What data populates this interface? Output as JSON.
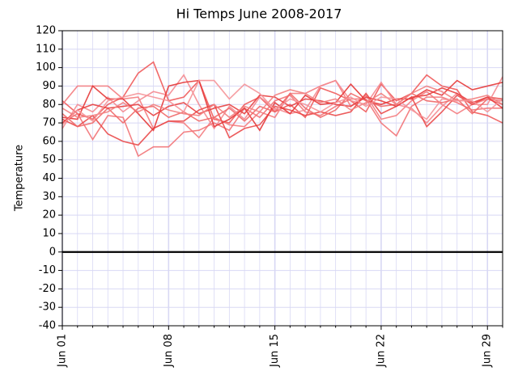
{
  "chart_data": {
    "type": "line",
    "title": "Hi Temps June 2008-2017",
    "y_label": "Temperature",
    "categories": [
      "Jun 01",
      null,
      null,
      null,
      null,
      null,
      null,
      "Jun 08",
      null,
      null,
      null,
      null,
      null,
      null,
      "Jun 15",
      null,
      null,
      null,
      null,
      null,
      null,
      "Jun 22",
      null,
      null,
      null,
      null,
      null,
      null,
      "Jun 29",
      null
    ],
    "ylim": [
      -40,
      120
    ],
    "yticks": [
      -40,
      -30,
      -20,
      -10,
      0,
      10,
      20,
      30,
      40,
      50,
      60,
      70,
      80,
      90,
      100,
      110,
      120
    ],
    "grid": true,
    "grid_color": "#d8d8f4",
    "hline": 0,
    "series": [
      {
        "color": "#f05a5a",
        "values": [
          82,
          75,
          72,
          80,
          84,
          97,
          103,
          82,
          84,
          93,
          72,
          70,
          80,
          84,
          76,
          80,
          73,
          89,
          86,
          82,
          76,
          91,
          82,
          86,
          96,
          90,
          88,
          76,
          74,
          70
        ]
      },
      {
        "color": "#f47c80",
        "values": [
          80,
          90,
          90,
          90,
          83,
          84,
          67,
          71,
          70,
          62,
          73,
          69,
          68,
          76,
          73,
          86,
          86,
          90,
          93,
          79,
          85,
          72,
          74,
          82,
          87,
          80,
          75,
          80,
          83,
          82
        ]
      },
      {
        "color": "#f27377",
        "values": [
          70,
          75,
          61,
          74,
          73,
          52,
          57,
          57,
          65,
          66,
          70,
          66,
          78,
          73,
          82,
          85,
          76,
          74,
          79,
          83,
          83,
          70,
          63,
          79,
          84,
          84,
          81,
          77,
          78,
          78
        ]
      },
      {
        "color": "#f48a90",
        "values": [
          67,
          80,
          76,
          84,
          76,
          82,
          87,
          85,
          96,
          80,
          67,
          79,
          72,
          84,
          78,
          75,
          77,
          90,
          93,
          82,
          80,
          92,
          80,
          78,
          70,
          79,
          86,
          80,
          80,
          95
        ]
      },
      {
        "color": "#ea4a4a",
        "values": [
          72,
          68,
          74,
          64,
          60,
          58,
          67,
          71,
          71,
          77,
          80,
          62,
          67,
          69,
          79,
          77,
          74,
          76,
          74,
          76,
          86,
          75,
          79,
          84,
          68,
          76,
          85,
          80,
          84,
          83
        ]
      },
      {
        "color": "#e63838",
        "values": [
          73,
          72,
          90,
          83,
          83,
          75,
          66,
          90,
          92,
          93,
          68,
          72,
          78,
          66,
          81,
          75,
          85,
          80,
          81,
          91,
          82,
          80,
          83,
          83,
          88,
          85,
          93,
          88,
          90,
          92
        ]
      },
      {
        "color": "#f06868",
        "values": [
          75,
          68,
          70,
          78,
          70,
          78,
          79,
          73,
          76,
          71,
          73,
          78,
          71,
          79,
          76,
          86,
          78,
          73,
          77,
          86,
          82,
          79,
          80,
          86,
          82,
          81,
          83,
          75,
          83,
          80
        ]
      },
      {
        "color": "#e84040",
        "values": [
          70,
          77,
          80,
          78,
          79,
          80,
          74,
          79,
          81,
          75,
          78,
          80,
          75,
          85,
          84,
          79,
          83,
          82,
          80,
          79,
          84,
          82,
          79,
          84,
          85,
          89,
          86,
          81,
          84,
          78
        ]
      },
      {
        "color": "#f28080",
        "values": [
          78,
          73,
          74,
          76,
          81,
          76,
          80,
          77,
          75,
          74,
          80,
          73,
          79,
          76,
          85,
          88,
          86,
          81,
          83,
          77,
          81,
          86,
          80,
          86,
          90,
          87,
          82,
          83,
          85,
          80
        ]
      },
      {
        "color": "#f59498",
        "values": [
          69,
          77,
          71,
          82,
          84,
          86,
          84,
          82,
          76,
          93,
          93,
          83,
          91,
          86,
          77,
          83,
          80,
          76,
          81,
          84,
          79,
          84,
          83,
          77,
          72,
          83,
          82,
          82,
          76,
          83
        ]
      }
    ]
  }
}
